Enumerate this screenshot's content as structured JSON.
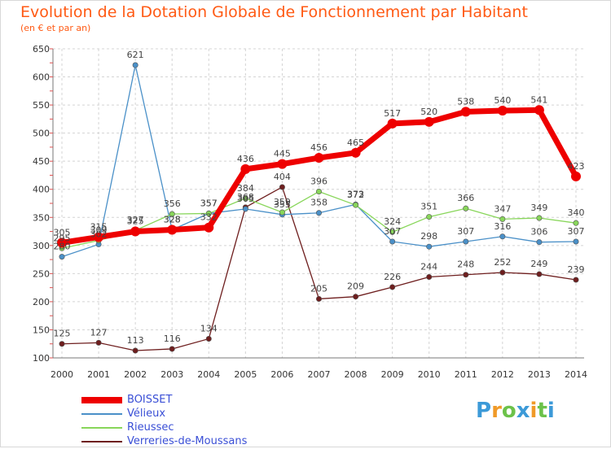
{
  "chart_data": {
    "type": "line",
    "title": "Evolution de la Dotation Globale de Fonctionnement par Habitant",
    "subtitle": "(en € et par an)",
    "xlabel": "",
    "ylabel": "",
    "ylim": [
      100,
      650
    ],
    "yticks": [
      100,
      150,
      200,
      250,
      300,
      350,
      400,
      450,
      500,
      550,
      600,
      650
    ],
    "categories": [
      "2000",
      "2001",
      "2002",
      "2003",
      "2004",
      "2005",
      "2006",
      "2007",
      "2008",
      "2009",
      "2010",
      "2011",
      "2012",
      "2013",
      "2014"
    ],
    "grid": true,
    "legend_position": "bottom-left",
    "series": [
      {
        "name": "BOISSET",
        "color": "#ee0000",
        "values": [
          305,
          315,
          325,
          328,
          332,
          436,
          445,
          456,
          465,
          517,
          520,
          538,
          540,
          541,
          423
        ]
      },
      {
        "name": "Vélieux",
        "color": "#4a90c8",
        "values": [
          280,
          302,
          621,
          328,
          357,
          365,
          355,
          358,
          373,
          307,
          298,
          307,
          316,
          306,
          307
        ]
      },
      {
        "name": "Rieussec",
        "color": "#88d65a",
        "values": [
          295,
          309,
          327,
          356,
          357,
          384,
          359,
          396,
          372,
          324,
          351,
          366,
          347,
          349,
          340
        ]
      },
      {
        "name": "Verreries-de-Moussans",
        "color": "#6e1e1e",
        "values": [
          125,
          127,
          113,
          116,
          134,
          368,
          404,
          205,
          209,
          226,
          244,
          248,
          252,
          249,
          239
        ]
      }
    ]
  },
  "brand": {
    "letters": [
      "P",
      "r",
      "o",
      "x",
      "i",
      "t",
      "i"
    ],
    "colors": [
      "#3c9ad8",
      "#f09a28",
      "#6cc24a",
      "#3c9ad8",
      "#f09a28",
      "#6cc24a",
      "#3c9ad8"
    ]
  }
}
